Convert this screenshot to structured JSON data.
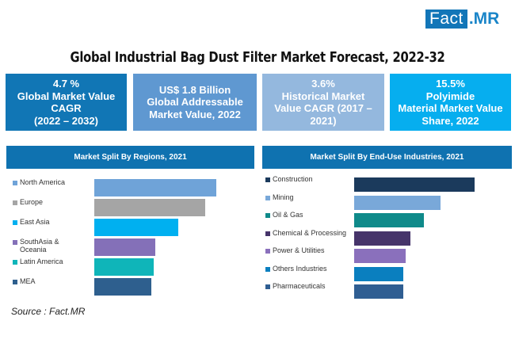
{
  "logo": {
    "part1": "Fact",
    "part2": ".MR"
  },
  "title": "Global Industrial Bag Dust Filter Market Forecast, 2022-32",
  "kpis": [
    {
      "lines": [
        "4.7 %",
        "Global Market Value",
        "CAGR",
        "(2022 – 2032)"
      ],
      "color": "#1176b5"
    },
    {
      "lines": [
        "US$ 1.8 Billion",
        "Global Addressable",
        "Market Value, 2022"
      ],
      "color": "#5f98d1"
    },
    {
      "lines": [
        "3.6%",
        "Historical Market",
        "Value CAGR (2017 –",
        "2021)"
      ],
      "color": "#94b8de"
    },
    {
      "lines": [
        "15.5%",
        "Polyimide",
        "Material Market Value",
        "Share, 2022"
      ],
      "color": "#06aeef"
    }
  ],
  "source": "Source : Fact.MR",
  "chart_data": [
    {
      "type": "bar",
      "orientation": "horizontal",
      "title": "Market Split By Regions, 2021",
      "categories": [
        "North America",
        "Europe",
        "East Asia",
        "SouthAsia & Oceania",
        "Latin America",
        "MEA"
      ],
      "values": [
        100,
        91,
        69,
        50,
        49,
        47
      ],
      "value_unit": "relative bar length (no axis shown)",
      "colors": [
        "#6fa3d8",
        "#a5a5a5",
        "#00b0f0",
        "#8470b8",
        "#0fb5b9",
        "#2e5f8e"
      ],
      "legend": "left",
      "grid": false
    },
    {
      "type": "bar",
      "orientation": "horizontal",
      "title": "Market Split By End-Use Industries, 2021",
      "categories": [
        "Construction",
        "Mining",
        "Oil & Gas",
        "Chemical & Processing",
        "Power & Utilities",
        "Others Industries",
        "Pharmaceuticals"
      ],
      "values": [
        100,
        72,
        58,
        47,
        43,
        41,
        41
      ],
      "value_unit": "relative bar length (no axis shown)",
      "colors": [
        "#1b3a5c",
        "#79a8d9",
        "#0f8a8a",
        "#46346a",
        "#8a70bc",
        "#0a7fbf",
        "#2f5e92"
      ],
      "legend": "left",
      "grid": false
    }
  ]
}
